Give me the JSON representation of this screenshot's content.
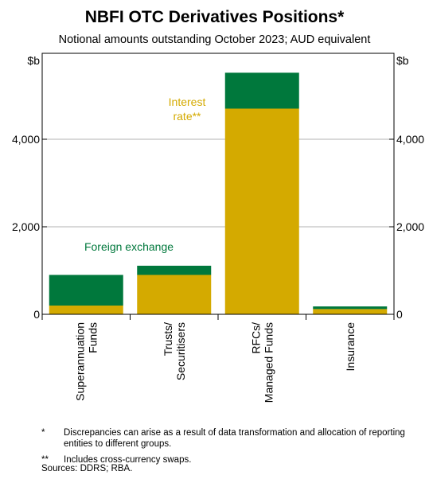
{
  "title": "NBFI OTC Derivatives Positions*",
  "subtitle": "Notional amounts outstanding October 2023; AUD equivalent",
  "chart_data": {
    "type": "bar",
    "stacked": true,
    "categories": [
      [
        "Superannuation",
        "Funds"
      ],
      [
        "Trusts/",
        "Securitisers"
      ],
      [
        "RFCs/",
        "Managed Funds"
      ],
      [
        "Insurance"
      ]
    ],
    "series": [
      {
        "name": "Interest rate**",
        "color": "#d4aa00",
        "values": [
          200,
          900,
          4700,
          120
        ]
      },
      {
        "name": "Foreign exchange",
        "color": "#00783c",
        "values": [
          700,
          210,
          820,
          60
        ]
      }
    ],
    "ylabel_left": "$b",
    "ylabel_right": "$b",
    "ylim": [
      0,
      6000
    ],
    "yticks": [
      "0",
      "2,000",
      "4,000"
    ],
    "ytick_values": [
      0,
      2000,
      4000
    ],
    "grid": true,
    "annotations": [
      {
        "lines": [
          "Interest",
          "rate**"
        ],
        "color": "#d4aa00"
      },
      {
        "lines": [
          "Foreign exchange"
        ],
        "color": "#00783c"
      }
    ]
  },
  "notes": [
    {
      "mark": "*",
      "text": "Discrepancies can arise as a result of data transformation and allocation of reporting entities to different groups."
    },
    {
      "mark": "**",
      "text": "Includes cross-currency swaps."
    }
  ],
  "sources": "Sources: DDRS; RBA."
}
